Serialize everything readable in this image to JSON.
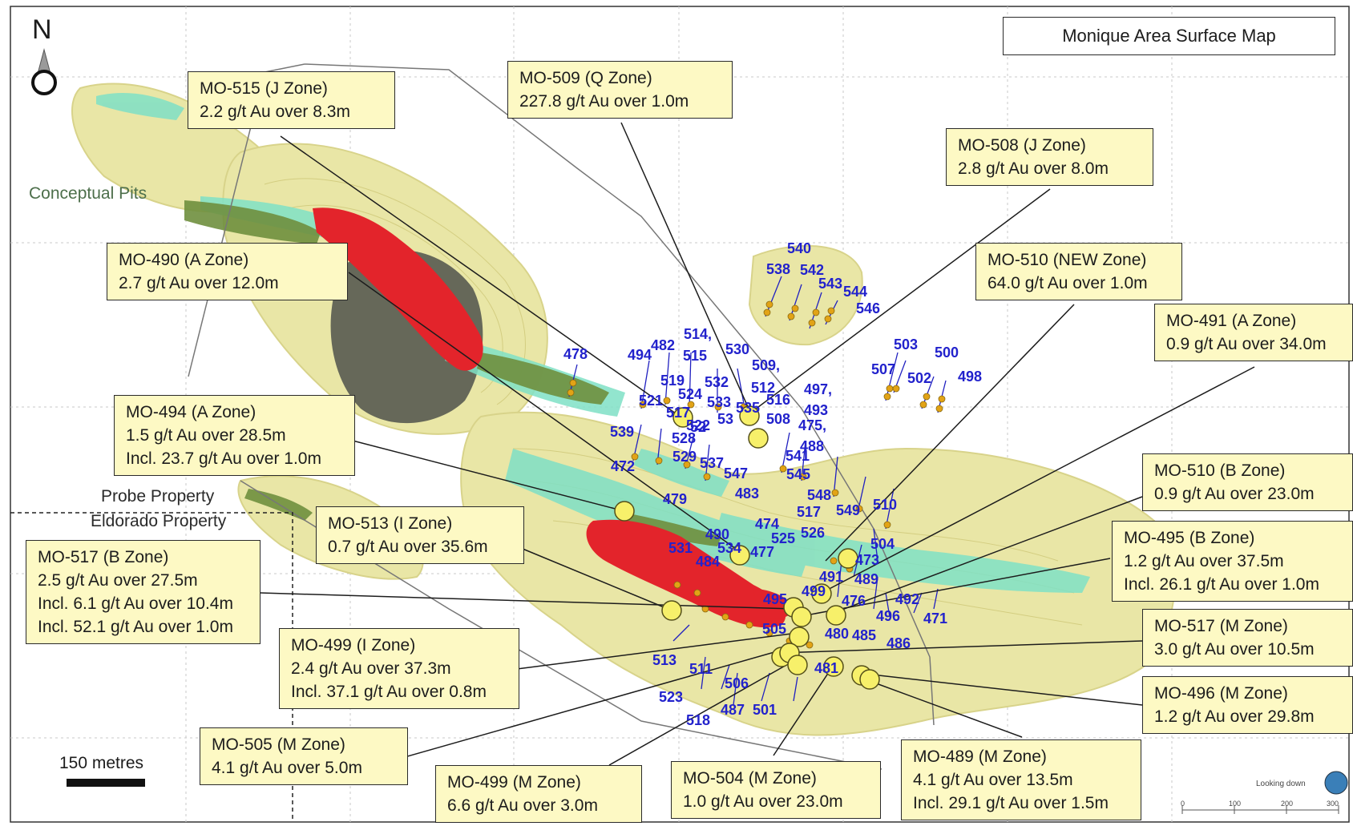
{
  "map_title": "Monique Area Surface Map",
  "north_label": "N",
  "scale_bar_label": "150 metres",
  "conceptual_pits_label": "Conceptual Pits",
  "probe_property_label": "Probe Property",
  "eldorado_property_label": "Eldorado Property",
  "looking_down_label": "Looking down",
  "mini_scale_ticks": [
    "0",
    "100",
    "200",
    "300"
  ],
  "callouts": [
    {
      "id": "mo-515-j",
      "lines": [
        "MO-515 (J Zone)",
        "2.2 g/t Au over 8.3m"
      ]
    },
    {
      "id": "mo-509-q",
      "lines": [
        "MO-509 (Q Zone)",
        "227.8 g/t Au over 1.0m"
      ]
    },
    {
      "id": "mo-508-j",
      "lines": [
        "MO-508 (J  Zone)",
        "2.8 g/t Au over 8.0m"
      ]
    },
    {
      "id": "mo-490-a",
      "lines": [
        "MO-490 (A Zone)",
        "2.7 g/t Au over 12.0m"
      ]
    },
    {
      "id": "mo-510-new",
      "lines": [
        "MO-510 (NEW Zone)",
        "64.0 g/t Au over 1.0m"
      ]
    },
    {
      "id": "mo-491-a",
      "lines": [
        "MO-491 (A Zone)",
        "0.9 g/t Au over 34.0m"
      ]
    },
    {
      "id": "mo-494-a",
      "lines": [
        "MO-494 (A Zone)",
        "1.5 g/t Au over 28.5m",
        "Incl. 23.7 g/t Au over 1.0m"
      ]
    },
    {
      "id": "mo-510-b",
      "lines": [
        "MO-510 (B Zone)",
        "0.9 g/t Au over 23.0m"
      ]
    },
    {
      "id": "mo-513-i",
      "lines": [
        "MO-513 (I Zone)",
        "0.7 g/t Au over 35.6m"
      ]
    },
    {
      "id": "mo-495-b",
      "lines": [
        "MO-495 (B Zone)",
        "1.2 g/t Au over 37.5m",
        "Incl. 26.1 g/t Au over 1.0m"
      ]
    },
    {
      "id": "mo-517-b",
      "lines": [
        "MO-517 (B Zone)",
        "2.5 g/t Au over 27.5m",
        "Incl. 6.1 g/t Au over 10.4m",
        "Incl. 52.1 g/t Au over 1.0m"
      ]
    },
    {
      "id": "mo-499-i",
      "lines": [
        "MO-499 (I Zone)",
        "2.4 g/t Au over 37.3m",
        "Incl. 37.1 g/t Au over 0.8m"
      ]
    },
    {
      "id": "mo-517-m",
      "lines": [
        "MO-517 (M Zone)",
        "3.0 g/t Au over 10.5m"
      ]
    },
    {
      "id": "mo-496-m",
      "lines": [
        "MO-496 (M Zone)",
        "1.2 g/t Au over 29.8m"
      ]
    },
    {
      "id": "mo-505-m",
      "lines": [
        "MO-505 (M Zone)",
        "4.1 g/t Au over 5.0m"
      ]
    },
    {
      "id": "mo-499-m",
      "lines": [
        "MO-499 (M Zone)",
        "6.6 g/t Au over 3.0m"
      ]
    },
    {
      "id": "mo-504-m",
      "lines": [
        "MO-504 (M Zone)",
        "1.0 g/t Au over 23.0m"
      ]
    },
    {
      "id": "mo-489-m",
      "lines": [
        "MO-489 (M Zone)",
        "4.1 g/t Au over 13.5m",
        "Incl. 29.1 g/t Au over 1.5m"
      ]
    }
  ],
  "drill_hole_labels": [
    "540",
    "538",
    "542",
    "543",
    "544",
    "546",
    "514,",
    "515",
    "482",
    "494",
    "530",
    "478",
    "509,",
    "532",
    "512",
    "516",
    "519",
    "524",
    "533",
    "535",
    "497,",
    "493",
    "475,",
    "488",
    "503",
    "500",
    "507",
    "502",
    "498",
    "521",
    "517",
    "522",
    "508",
    "539",
    "528",
    "529",
    "537",
    "541",
    "547",
    "545",
    "472",
    "483",
    "548",
    "517",
    "549",
    "510",
    "479",
    "474",
    "526",
    "490",
    "534",
    "531",
    "525",
    "504",
    "477",
    "484",
    "473",
    "491",
    "489",
    "499",
    "495",
    "476",
    "492",
    "496",
    "471",
    "505",
    "480",
    "485",
    "486",
    "513",
    "511",
    "481",
    "506",
    "523",
    "487",
    "501",
    "518",
    "53",
    "52"
  ]
}
